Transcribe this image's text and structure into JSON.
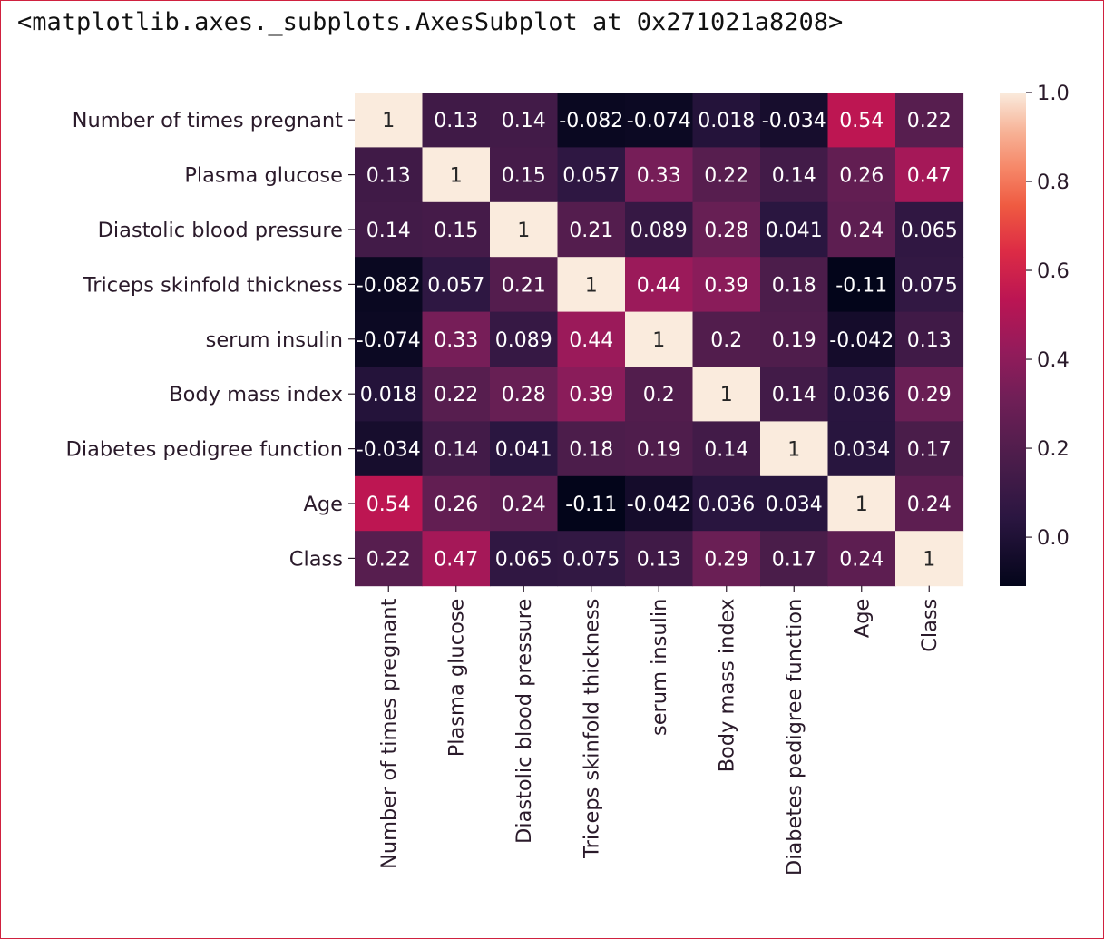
{
  "output_text": "<matplotlib.axes._subplots.AxesSubplot at 0x271021a8208>",
  "chart_data": {
    "type": "heatmap",
    "labels": [
      "Number of times pregnant",
      "Plasma glucose",
      "Diastolic blood pressure",
      "Triceps skinfold thickness",
      "serum insulin",
      "Body mass index",
      "Diabetes pedigree function",
      "Age",
      "Class"
    ],
    "matrix": [
      [
        1,
        0.13,
        0.14,
        -0.082,
        -0.074,
        0.018,
        -0.034,
        0.54,
        0.22
      ],
      [
        0.13,
        1,
        0.15,
        0.057,
        0.33,
        0.22,
        0.14,
        0.26,
        0.47
      ],
      [
        0.14,
        0.15,
        1,
        0.21,
        0.089,
        0.28,
        0.041,
        0.24,
        0.065
      ],
      [
        -0.082,
        0.057,
        0.21,
        1,
        0.44,
        0.39,
        0.18,
        -0.11,
        0.075
      ],
      [
        -0.074,
        0.33,
        0.089,
        0.44,
        1,
        0.2,
        0.19,
        -0.042,
        0.13
      ],
      [
        0.018,
        0.22,
        0.28,
        0.39,
        0.2,
        1,
        0.14,
        0.036,
        0.29
      ],
      [
        -0.034,
        0.14,
        0.041,
        0.18,
        0.19,
        0.14,
        1,
        0.034,
        0.17
      ],
      [
        0.54,
        0.26,
        0.24,
        -0.11,
        -0.042,
        0.036,
        0.034,
        1,
        0.24
      ],
      [
        0.22,
        0.47,
        0.065,
        0.075,
        0.13,
        0.29,
        0.17,
        0.24,
        1
      ]
    ],
    "annotations": [
      [
        "1",
        "0.13",
        "0.14",
        "-0.082",
        "-0.074",
        "0.018",
        "-0.034",
        "0.54",
        "0.22"
      ],
      [
        "0.13",
        "1",
        "0.15",
        "0.057",
        "0.33",
        "0.22",
        "0.14",
        "0.26",
        "0.47"
      ],
      [
        "0.14",
        "0.15",
        "1",
        "0.21",
        "0.089",
        "0.28",
        "0.041",
        "0.24",
        "0.065"
      ],
      [
        "-0.082",
        "0.057",
        "0.21",
        "1",
        "0.44",
        "0.39",
        "0.18",
        "-0.11",
        "0.075"
      ],
      [
        "-0.074",
        "0.33",
        "0.089",
        "0.44",
        "1",
        "0.2",
        "0.19",
        "-0.042",
        "0.13"
      ],
      [
        "0.018",
        "0.22",
        "0.28",
        "0.39",
        "0.2",
        "1",
        "0.14",
        "0.036",
        "0.29"
      ],
      [
        "-0.034",
        "0.14",
        "0.041",
        "0.18",
        "0.19",
        "0.14",
        "1",
        "0.034",
        "0.17"
      ],
      [
        "0.54",
        "0.26",
        "0.24",
        "-0.11",
        "-0.042",
        "0.036",
        "0.034",
        "1",
        "0.24"
      ],
      [
        "0.22",
        "0.47",
        "0.065",
        "0.075",
        "0.13",
        "0.29",
        "0.17",
        "0.24",
        "1"
      ]
    ],
    "colorbar": {
      "vmin": -0.11,
      "vmax": 1.0,
      "ticks": [
        1.0,
        0.8,
        0.6,
        0.4,
        0.2,
        0.0
      ],
      "tick_labels": [
        "1.0",
        "0.8",
        "0.6",
        "0.4",
        "0.2",
        "0.0"
      ],
      "colormap": "rocket"
    },
    "colormap_stops": [
      [
        "#03051a",
        0.0
      ],
      [
        "#2b1641",
        0.14
      ],
      [
        "#4c1d4b",
        0.26
      ],
      [
        "#701f57",
        0.38
      ],
      [
        "#951b5b",
        0.48
      ],
      [
        "#bb1553",
        0.58
      ],
      [
        "#dd2c45",
        0.68
      ],
      [
        "#ef5a41",
        0.77
      ],
      [
        "#f6896a",
        0.85
      ],
      [
        "#f7b296",
        0.92
      ],
      [
        "#faebdd",
        1.0
      ]
    ],
    "light_text_color": "#ffffff",
    "dark_text_color": "#262626",
    "title": "",
    "xlabel": "",
    "ylabel": ""
  }
}
